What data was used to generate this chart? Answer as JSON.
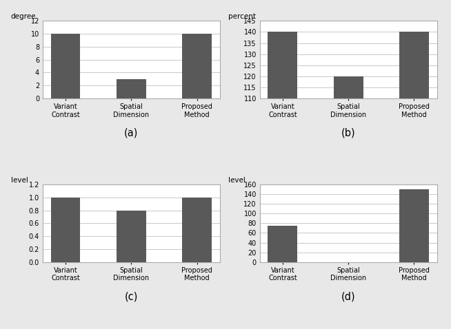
{
  "categories": [
    "Variant\nContrast",
    "Spatial\nDimension",
    "Proposed\nMethod"
  ],
  "subplot_a": {
    "values": [
      10,
      3,
      10
    ],
    "ylabel": "degree",
    "ylim": [
      0,
      12
    ],
    "yticks": [
      0,
      2,
      4,
      6,
      8,
      10,
      12
    ],
    "label": "(a)"
  },
  "subplot_b": {
    "values": [
      140,
      120,
      140
    ],
    "ylabel": "percent",
    "ylim": [
      110,
      145
    ],
    "yticks": [
      110,
      115,
      120,
      125,
      130,
      135,
      140,
      145
    ],
    "label": "(b)"
  },
  "subplot_c": {
    "values": [
      1.0,
      0.8,
      1.0
    ],
    "ylabel": "level",
    "ylim": [
      0,
      1.2
    ],
    "yticks": [
      0,
      0.2,
      0.4,
      0.6,
      0.8,
      1.0,
      1.2
    ],
    "label": "(c)"
  },
  "subplot_d": {
    "values": [
      75,
      0,
      150
    ],
    "ylabel": "level",
    "ylim": [
      0,
      160
    ],
    "yticks": [
      0,
      20,
      40,
      60,
      80,
      100,
      120,
      140,
      160
    ],
    "label": "(d)"
  },
  "bar_color": "#595959",
  "bar_width": 0.45,
  "bg_color": "#ffffff",
  "fig_bg_color": "#e8e8e8",
  "grid_color": "#c8c8c8",
  "spine_color": "#aaaaaa",
  "tick_fontsize": 7,
  "ylabel_fontsize": 7.5,
  "caption_fontsize": 10.5,
  "x_tick_pad": 3
}
